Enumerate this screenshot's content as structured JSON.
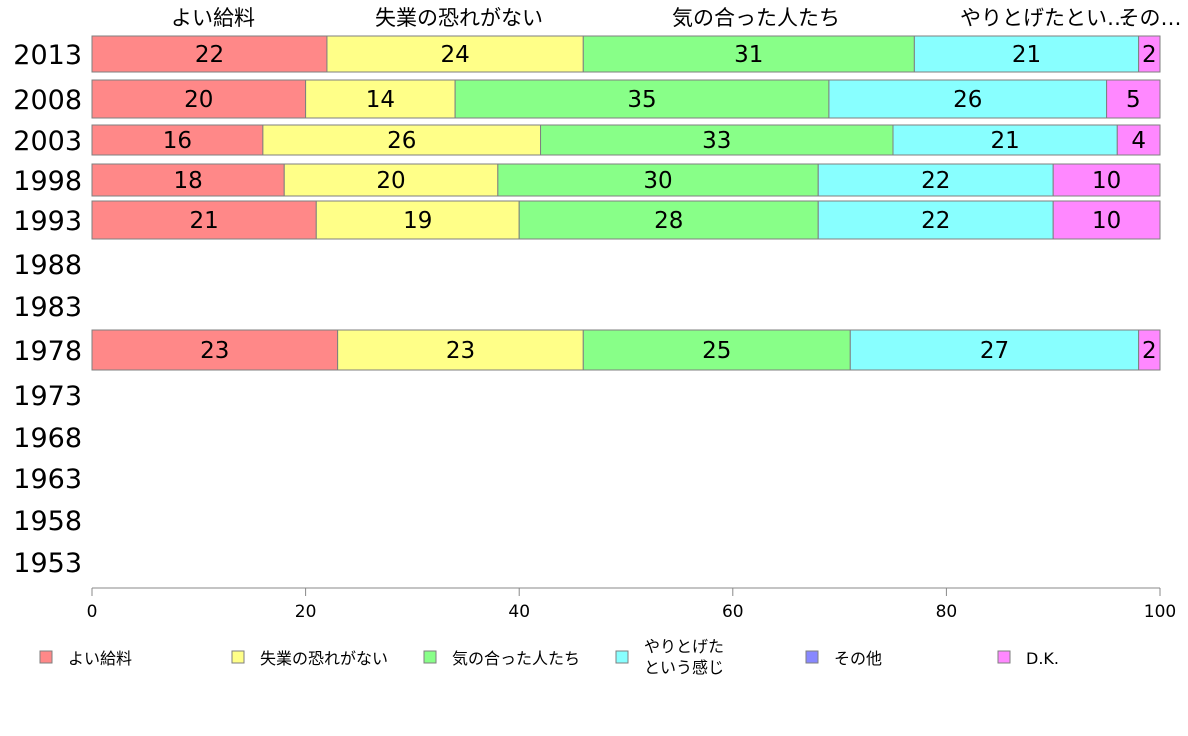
{
  "chart_data": {
    "type": "bar",
    "orientation": "horizontal-stacked-percent",
    "categories": [
      "2013",
      "2008",
      "2003",
      "1998",
      "1993",
      "1988",
      "1983",
      "1978",
      "1973",
      "1968",
      "1963",
      "1958",
      "1953"
    ],
    "column_headers": [
      "よい給料",
      "失業の恐れがない",
      "気の合った人たち",
      "やりとげたとい…",
      "その…"
    ],
    "series": [
      {
        "name": "よい給料",
        "color": "#ff8888",
        "values": [
          22,
          20,
          16,
          18,
          21,
          null,
          null,
          23,
          null,
          null,
          null,
          null,
          null
        ]
      },
      {
        "name": "失業の恐れがない",
        "color": "#ffff88",
        "values": [
          24,
          14,
          26,
          20,
          19,
          null,
          null,
          23,
          null,
          null,
          null,
          null,
          null
        ]
      },
      {
        "name": "気の合った人たち",
        "color": "#88ff88",
        "values": [
          31,
          35,
          33,
          30,
          28,
          null,
          null,
          25,
          null,
          null,
          null,
          null,
          null
        ]
      },
      {
        "name": "やりとげたという感じ",
        "legend_lines": [
          "やりとげた",
          "という感じ"
        ],
        "color": "#88ffff",
        "values": [
          21,
          26,
          21,
          22,
          22,
          null,
          null,
          27,
          null,
          null,
          null,
          null,
          null
        ]
      },
      {
        "name": "その他",
        "color": "#8888ff",
        "values": [
          0,
          0,
          0,
          0,
          0,
          null,
          null,
          0,
          null,
          null,
          null,
          null,
          null
        ]
      },
      {
        "name": "D.K.",
        "color": "#ff88ff",
        "values": [
          2,
          5,
          4,
          10,
          10,
          null,
          null,
          2,
          null,
          null,
          null,
          null,
          null
        ]
      }
    ],
    "xlim": [
      0,
      100
    ],
    "xticks": [
      0,
      20,
      40,
      60,
      80,
      100
    ],
    "grid": false,
    "legend_position": "bottom"
  }
}
